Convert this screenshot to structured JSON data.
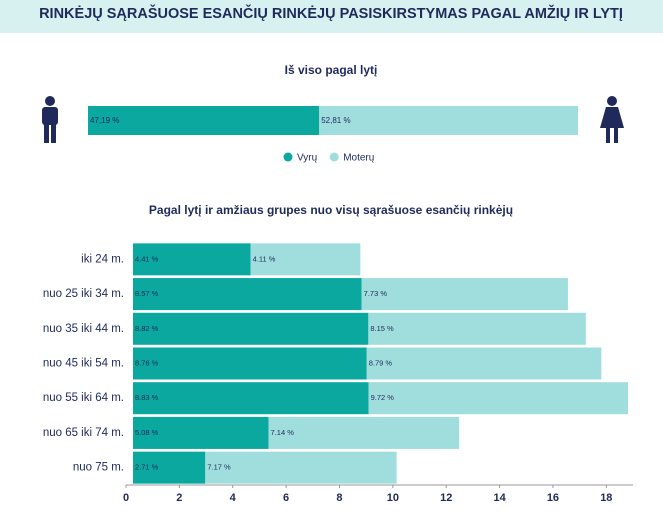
{
  "header": {
    "title": "RINKĖJŲ SĄRAŠUOSE ESANČIŲ RINKĖJŲ PASISKIRSTYMAS PAGAL AMŽIŲ IR LYTĮ"
  },
  "chart_data": [
    {
      "type": "bar",
      "orientation": "horizontal",
      "stacked": true,
      "title": "Iš viso pagal lytį",
      "categories": [
        null
      ],
      "series": [
        {
          "name": "Vyrų",
          "color": "#0aa89e",
          "values": [
            47.19
          ],
          "value_labels": [
            "47,19 %"
          ]
        },
        {
          "name": "Moterų",
          "color": "#a0dedd",
          "values": [
            52.81
          ],
          "value_labels": [
            "52,81 %"
          ]
        }
      ]
    },
    {
      "type": "bar",
      "orientation": "horizontal",
      "stacked": true,
      "title": "Pagal lytį ir amžiaus grupes nuo visų sąrašuose esančių rinkėjų",
      "categories": [
        "iki 24 m.",
        "nuo 25 iki 34 m.",
        "nuo 35 iki 44 m.",
        "nuo 45 iki 54 m.",
        "nuo 55 iki 64 m.",
        "nuo 65 iki 74 m.",
        "nuo 75 m."
      ],
      "series": [
        {
          "color": "#0aa89e",
          "values": [
            4.41,
            8.57,
            8.82,
            8.76,
            8.83,
            5.08,
            2.71
          ],
          "value_labels": [
            "4.41 %",
            "8.57 %",
            "8.82 %",
            "8.76 %",
            "8.83 %",
            "5.08 %",
            "2.71 %"
          ]
        },
        {
          "color": "#a0dedd",
          "values": [
            4.11,
            7.73,
            8.15,
            8.79,
            9.72,
            7.14,
            7.17
          ],
          "value_labels": [
            "4.11 %",
            "7.73 %",
            "8.15 %",
            "8.79 %",
            "9.72 %",
            "7.14 %",
            "7.17 %"
          ]
        }
      ],
      "xlim": [
        0,
        19
      ],
      "xticks": [
        0,
        2,
        4,
        6,
        8,
        10,
        12,
        14,
        16,
        18
      ]
    }
  ]
}
